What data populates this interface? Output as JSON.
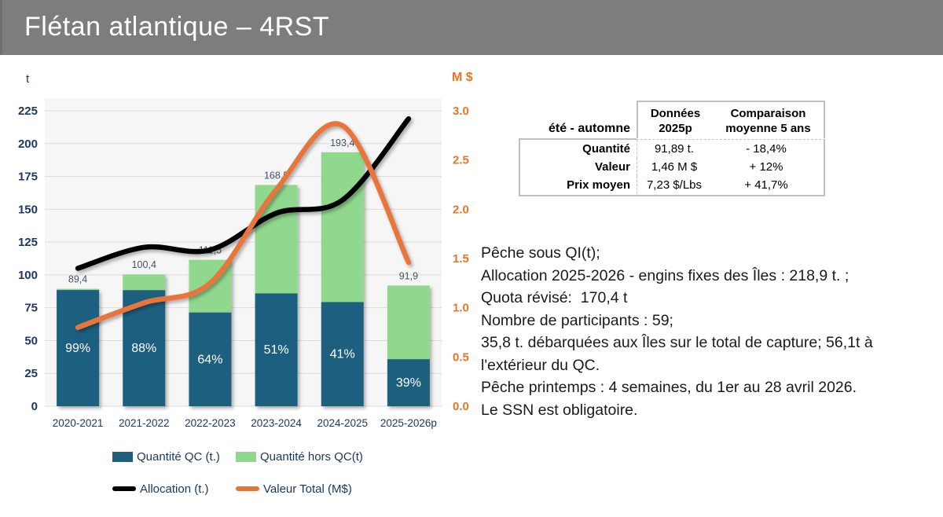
{
  "title": "Flétan atlantique – 4RST",
  "chart_data": {
    "type": "combo_stacked_bar_line",
    "categories": [
      "2020-2021",
      "2021-2022",
      "2022-2023",
      "2023-2024",
      "2024-2025",
      "2025-2026p"
    ],
    "series": [
      {
        "name": "Quantité QC (t.)",
        "type": "bar",
        "stack": "quantite",
        "color": "#1f5f7e",
        "values": [
          88.5,
          88.4,
          71.4,
          85.9,
          79.3,
          35.8
        ]
      },
      {
        "name": "Quantité hors QC(t)",
        "type": "bar",
        "stack": "quantite",
        "color": "#90d88e",
        "values": [
          0.9,
          12.0,
          40.1,
          82.6,
          114.1,
          56.1
        ]
      },
      {
        "name": "Allocation (t.)",
        "type": "line",
        "axis": "left",
        "color": "#000000",
        "values": [
          105,
          121,
          119,
          147,
          157,
          218.9
        ]
      },
      {
        "name": "Valeur Total (M$)",
        "type": "line",
        "axis": "right",
        "color": "#e8743a",
        "values": [
          0.8,
          1.05,
          1.25,
          2.2,
          2.85,
          1.46
        ]
      }
    ],
    "bar_total_labels": [
      "89,4",
      "100,4",
      "111,5",
      "168,5",
      "193,4",
      "91,9"
    ],
    "bar_pct_labels": [
      "99%",
      "88%",
      "64%",
      "51%",
      "41%",
      "39%"
    ],
    "left_axis": {
      "label": "t",
      "min": 0,
      "max": 225,
      "step": 25,
      "color": "#1f3864"
    },
    "right_axis": {
      "label": "M $",
      "min": 0,
      "max": 3,
      "step": 0.5,
      "color": "#e87424"
    },
    "grid": true,
    "legend_position": "bottom",
    "plot_bg": "#f6f6f6",
    "grid_color": "#dadada",
    "total_label_color": "#44546a",
    "pct_label_color": "#ffffff",
    "xtick_color": "#1f3864"
  },
  "table": {
    "corner_label": "été - automne",
    "col_headers": [
      "Données 2025p",
      "Comparaison moyenne 5 ans"
    ],
    "rows": [
      {
        "label": "Quantité",
        "value": "91,89 t.",
        "comparison": "- 18,4%"
      },
      {
        "label": "Valeur",
        "value": "1,46 M $",
        "comparison": "+ 12%"
      },
      {
        "label": "Prix moyen",
        "value": "7,23 $/Lbs",
        "comparison": "+ 41,7%"
      }
    ]
  },
  "notes": {
    "lines": [
      "Pêche sous QI(t);",
      "Allocation 2025-2026 - engins fixes des Îles : 218,9 t. ;",
      "Quota révisé:  170,4 t",
      "Nombre de participants : 59;",
      "35,8 t. débarquées aux Îles sur le total de capture; 56,1t à l'extérieur du QC.",
      "Pêche printemps : 4 semaines, du 1er au 28 avril 2026.",
      "Le SSN est obligatoire."
    ]
  }
}
